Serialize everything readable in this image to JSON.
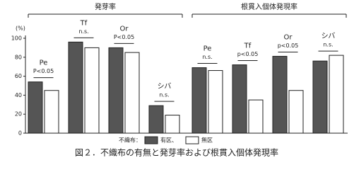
{
  "chart_data": {
    "type": "bar",
    "ylabel": "(%)",
    "ylim": [
      0,
      100
    ],
    "yticks": [
      0,
      20,
      40,
      60,
      80,
      100
    ],
    "legend_title": "不織布：",
    "series": [
      {
        "name": "有区、",
        "color": "#555555"
      },
      {
        "name": "無区",
        "color": "#ffffff"
      }
    ],
    "panels": [
      {
        "title": "発芽率",
        "categories": [
          "Pe",
          "Tf",
          "Or",
          "シバ"
        ],
        "annotations": [
          "P<0.05",
          "n.s.",
          "P<0.05",
          "n.s."
        ],
        "values": [
          [
            54,
            96,
            90,
            29
          ],
          [
            45,
            90,
            85,
            19
          ]
        ]
      },
      {
        "title": "根貫入個体発現率",
        "categories": [
          "Pe",
          "Tf",
          "Or",
          "シバ"
        ],
        "annotations": [
          "n.s.",
          "p<0.05",
          "p<0.05",
          "n.s."
        ],
        "values": [
          [
            69,
            72,
            81,
            76
          ],
          [
            66,
            35,
            45,
            82
          ]
        ]
      }
    ],
    "caption": "図２．不織布の有無と発芽率および根貫入個体発現率"
  }
}
